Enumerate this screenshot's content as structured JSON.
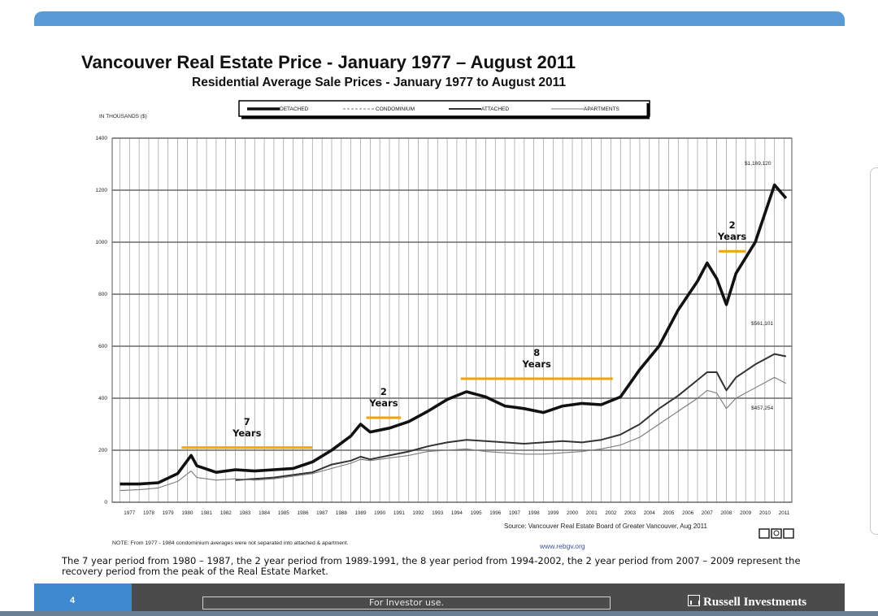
{
  "title": "Vancouver Real Estate Price - January 1977 – August 2011",
  "subtitle": "Residential Average Sale Prices  -  January 1977 to August 2011",
  "footnote": "The 7 year period from 1980 – 1987, the 2 year period from 1989-1991, the 8 year period from 1994-2002, the 2 year period from 2007 – 2009 represent the recovery period from the peak of the Real Estate Market.",
  "footer": {
    "page_number": "4",
    "investor_text": "For Investor use.",
    "brand": "Russell Investments"
  },
  "colors": {
    "accent_blue": "#5b9bd5",
    "footer_gray": "#4b4b4b",
    "recovery_bar": "#f0a30a"
  },
  "chart_data": {
    "type": "line",
    "ylabel": "IN THOUSANDS ($)",
    "ylim": [
      0,
      1400
    ],
    "yticks": [
      "0",
      "200",
      "400",
      "600",
      "800",
      "1000",
      "1200",
      "1400"
    ],
    "xticks": [
      "1977",
      "1978",
      "1979",
      "1980",
      "1981",
      "1982",
      "1983",
      "1984",
      "1985",
      "1986",
      "1987",
      "1988",
      "1989",
      "1990",
      "1991",
      "1992",
      "1993",
      "1994",
      "1995",
      "1996",
      "1997",
      "1998",
      "1999",
      "2000",
      "2001",
      "2002",
      "2003",
      "2004",
      "2005",
      "2006",
      "2007",
      "2008",
      "2009",
      "2010",
      "2011"
    ],
    "grid": true,
    "legend_position": "top-center",
    "x": [
      1977,
      1978,
      1979,
      1980,
      1980.7,
      1981,
      1982,
      1983,
      1984,
      1985,
      1986,
      1987,
      1988,
      1989,
      1989.5,
      1990,
      1991,
      1992,
      1993,
      1994,
      1995,
      1996,
      1997,
      1998,
      1999,
      2000,
      2001,
      2002,
      2003,
      2004,
      2005,
      2006,
      2007,
      2007.5,
      2008,
      2008.5,
      2009,
      2010,
      2011,
      2011.6
    ],
    "series": [
      {
        "name": "DETACHED",
        "style": "thick",
        "values": [
          70,
          70,
          75,
          110,
          180,
          140,
          115,
          125,
          120,
          125,
          130,
          155,
          200,
          255,
          300,
          270,
          285,
          310,
          350,
          395,
          425,
          405,
          370,
          360,
          345,
          370,
          380,
          375,
          405,
          510,
          600,
          740,
          850,
          920,
          860,
          760,
          880,
          1000,
          1220,
          1169
        ]
      },
      {
        "name": "CONDOMINIUM",
        "style": "dashed",
        "values": [
          null,
          null,
          null,
          null,
          null,
          null,
          null,
          null,
          null,
          null,
          null,
          null,
          null,
          null,
          null,
          null,
          null,
          null,
          null,
          null,
          null,
          null,
          null,
          null,
          null,
          null,
          null,
          null,
          null,
          null,
          null,
          null,
          null,
          null,
          null,
          null,
          null,
          null,
          null,
          null
        ]
      },
      {
        "name": "ATTACHED",
        "style": "medium",
        "values": [
          null,
          null,
          null,
          null,
          null,
          null,
          null,
          85,
          90,
          95,
          105,
          115,
          145,
          160,
          175,
          165,
          180,
          195,
          215,
          230,
          240,
          235,
          230,
          225,
          230,
          235,
          230,
          240,
          260,
          300,
          360,
          410,
          470,
          500,
          500,
          430,
          480,
          530,
          570,
          561
        ]
      },
      {
        "name": "APARTMENTS",
        "style": "thin",
        "values": [
          45,
          48,
          55,
          80,
          120,
          95,
          85,
          90,
          85,
          90,
          100,
          110,
          130,
          150,
          165,
          160,
          170,
          180,
          195,
          200,
          205,
          195,
          190,
          185,
          185,
          190,
          195,
          205,
          220,
          250,
          300,
          350,
          400,
          430,
          420,
          360,
          400,
          440,
          480,
          457
        ]
      }
    ],
    "annotations": {
      "value_labels": [
        "$1,169,120",
        "$561,101",
        "$457,254"
      ],
      "recovery_periods": [
        {
          "label_num": "7",
          "label_unit": "Years",
          "start": 1980.2,
          "end": 1987.0,
          "y": 210
        },
        {
          "label_num": "2",
          "label_unit": "Years",
          "start": 1989.8,
          "end": 1991.6,
          "y": 325
        },
        {
          "label_num": "8",
          "label_unit": "Years",
          "start": 1994.7,
          "end": 2002.6,
          "y": 475
        },
        {
          "label_num": "2",
          "label_unit": "Years",
          "start": 2008.1,
          "end": 2009.5,
          "y": 965
        }
      ]
    },
    "source": "Source:  Vancouver Real Estate Board of Greater Vancouver, Aug 2011",
    "note": "NOTE:  From 1977 - 1984 condominium averages were not separated into attached & apartment.",
    "website": "www.rebgv.org"
  }
}
